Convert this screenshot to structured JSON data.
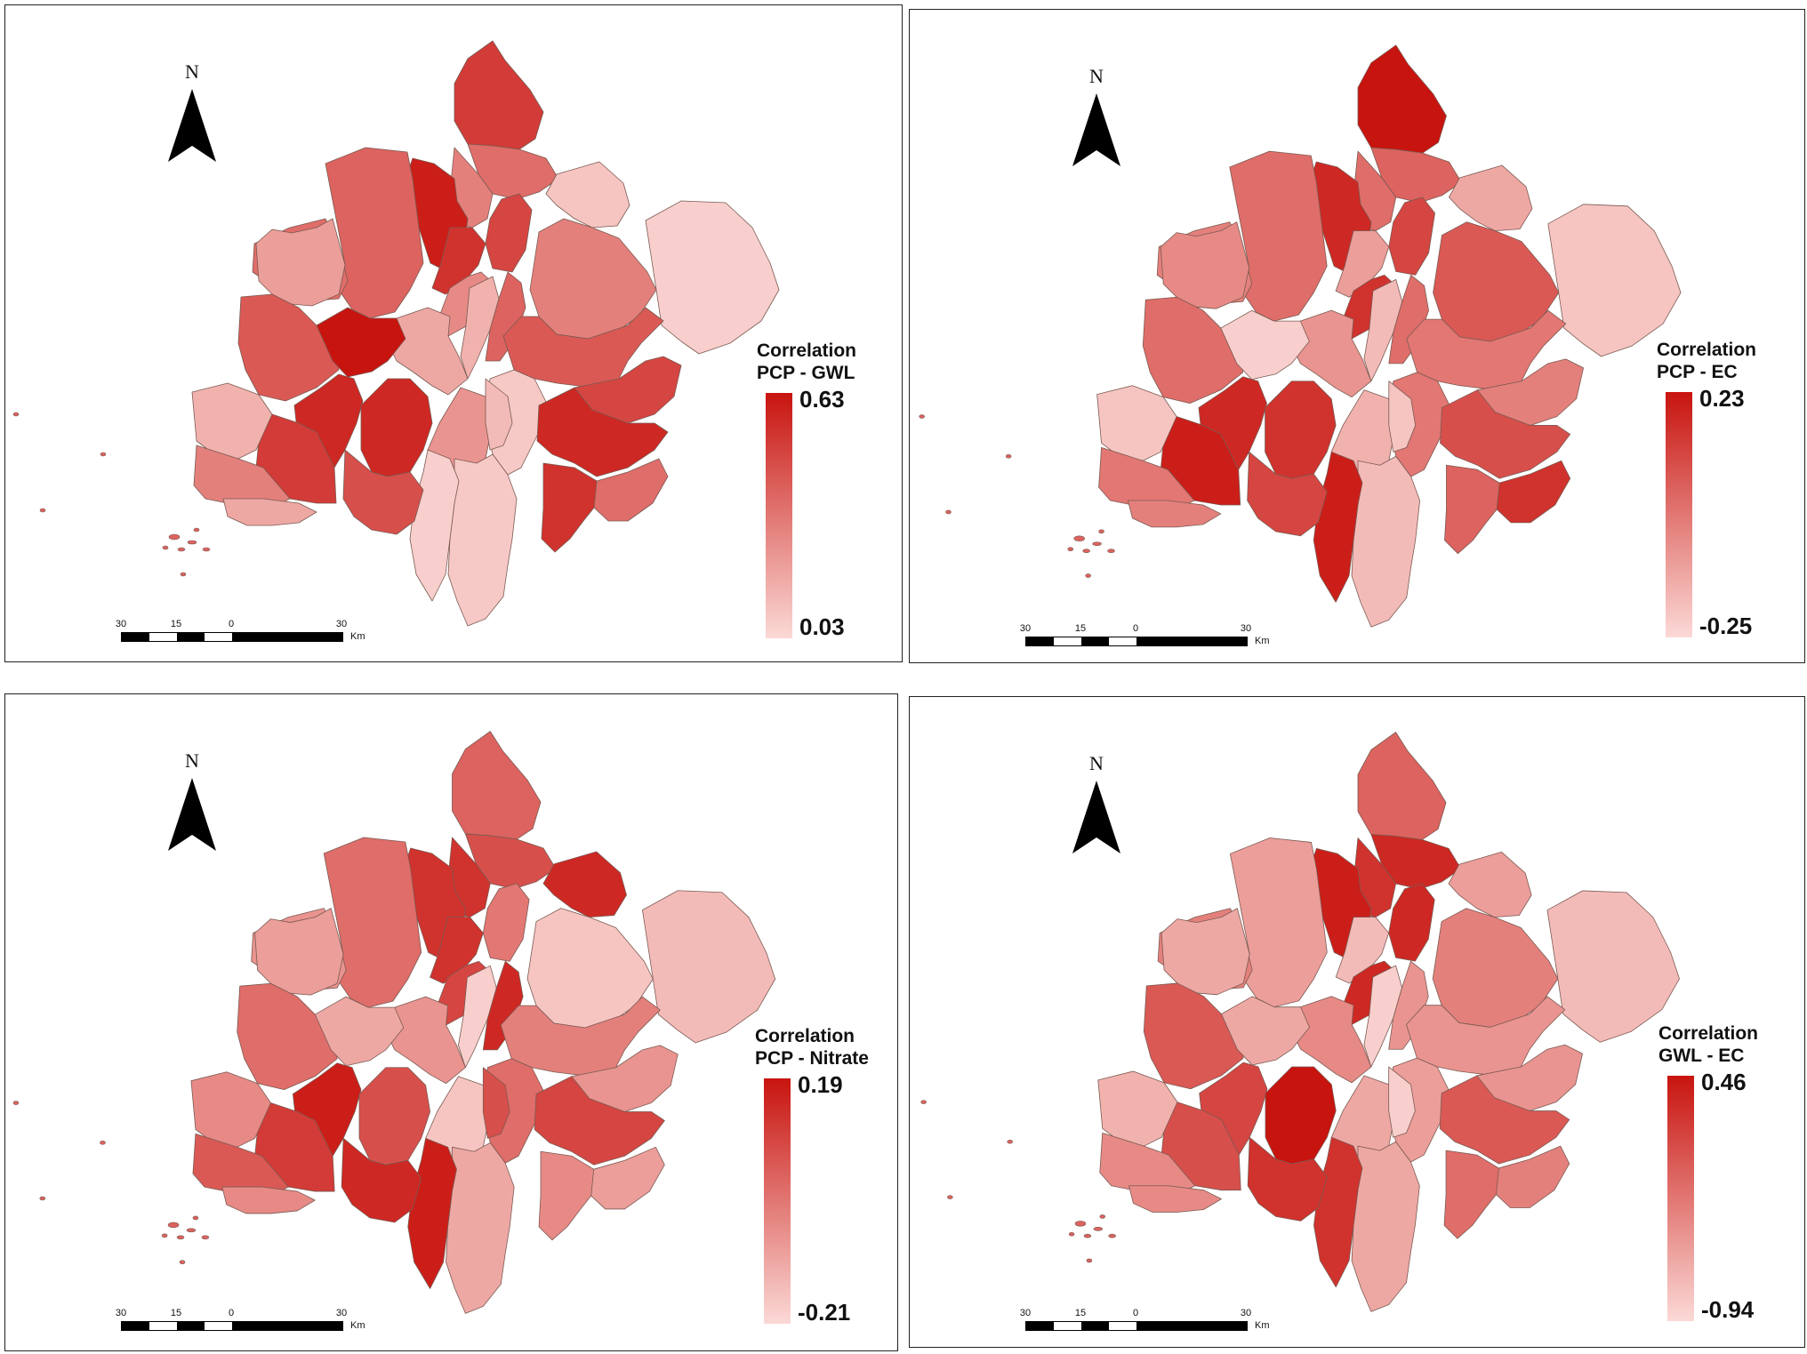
{
  "colors": {
    "ramp_high": "#c8140f",
    "ramp_low": "#fbd9d6",
    "region_stroke": "#7a5a52",
    "border": "#222222"
  },
  "north_letter": "N",
  "scale": {
    "labels": [
      "30",
      "15",
      "0",
      "30"
    ],
    "unit": "Km"
  },
  "panels": [
    {
      "legend_title_1": "Correlation",
      "legend_title_2": "PCP - GWL",
      "legend_max": "0.63",
      "legend_min": "0.03",
      "levels": [
        0.8,
        0.55,
        0.45,
        0.1,
        0.75,
        0.95,
        0.6,
        0.55,
        0.85,
        0.4,
        0.2,
        0.6,
        0.45,
        0.05,
        0.3,
        0.65,
        0.25,
        0.08,
        0.35,
        0.75,
        0.9,
        0.55,
        0.85,
        0.08,
        0.15,
        0.65,
        1.0,
        0.9,
        0.05,
        0.9,
        0.7,
        0.8,
        0.2,
        0.45,
        0.25
      ]
    },
    {
      "legend_title_1": "Correlation",
      "legend_title_2": "PCP - EC",
      "legend_max": "0.23",
      "legend_min": "-0.25",
      "levels": [
        1.0,
        0.6,
        0.55,
        0.25,
        0.75,
        0.9,
        0.55,
        0.45,
        0.3,
        0.85,
        0.15,
        0.55,
        0.65,
        0.1,
        0.4,
        0.5,
        0.35,
        0.5,
        0.2,
        0.45,
        0.7,
        0.85,
        0.6,
        0.15,
        0.1,
        0.55,
        0.05,
        0.9,
        0.95,
        0.85,
        0.75,
        0.95,
        0.1,
        0.5,
        0.45
      ]
    },
    {
      "legend_title_1": "Correlation",
      "legend_title_2": "PCP - Nitrate",
      "legend_max": "0.19",
      "legend_min": "-0.21",
      "levels": [
        0.6,
        0.7,
        0.85,
        0.9,
        0.5,
        0.85,
        0.55,
        0.35,
        0.85,
        0.75,
        0.05,
        0.9,
        0.1,
        0.15,
        0.3,
        0.45,
        0.35,
        0.55,
        0.1,
        0.35,
        0.75,
        0.3,
        0.4,
        0.25,
        0.7,
        0.55,
        0.25,
        0.95,
        0.95,
        0.7,
        0.9,
        0.8,
        0.4,
        0.65,
        0.4
      ]
    },
    {
      "legend_title_1": "Correlation",
      "legend_title_2": "GWL - EC",
      "legend_max": "0.46",
      "legend_min": "-0.94",
      "levels": [
        0.6,
        0.9,
        0.85,
        0.3,
        0.9,
        0.95,
        0.3,
        0.45,
        0.15,
        0.9,
        0.05,
        0.35,
        0.45,
        0.15,
        0.25,
        0.35,
        0.4,
        0.3,
        0.25,
        0.35,
        0.65,
        0.45,
        0.55,
        0.25,
        0.05,
        0.65,
        0.25,
        0.75,
        0.85,
        1.0,
        0.85,
        0.7,
        0.2,
        0.4,
        0.4
      ]
    }
  ]
}
